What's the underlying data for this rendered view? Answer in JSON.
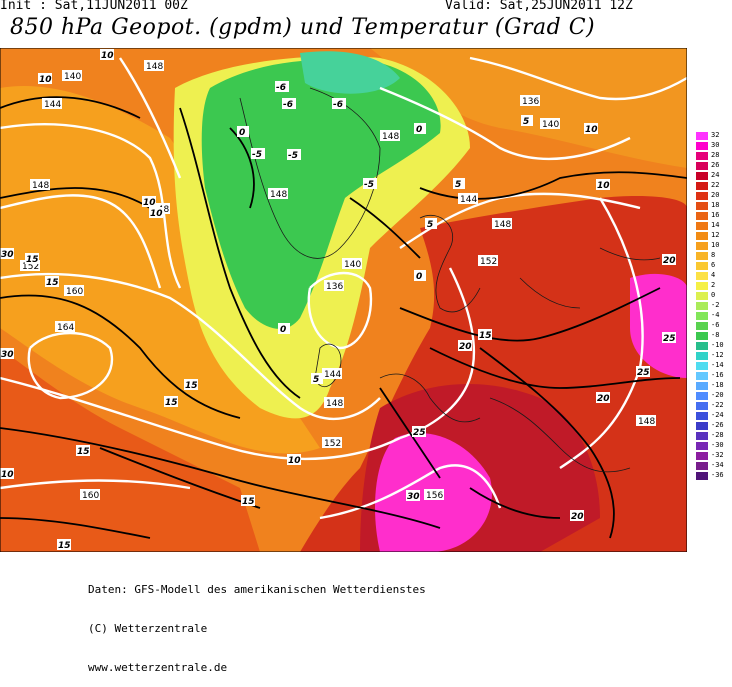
{
  "header": {
    "init": "Init : Sat,11JUN2011 00Z",
    "valid": "Valid: Sat,25JUN2011 12Z",
    "title": "850 hPa Geopot. (gpdm) und Temperatur (Grad C)"
  },
  "legend": {
    "values": [
      "32",
      "30",
      "28",
      "26",
      "24",
      "22",
      "20",
      "18",
      "16",
      "14",
      "12",
      "10",
      "8",
      "6",
      "4",
      "2",
      "0",
      "-2",
      "-4",
      "-6",
      "-8",
      "-10",
      "-12",
      "-14",
      "-16",
      "-18",
      "-20",
      "-22",
      "-24",
      "-26",
      "-28",
      "-30",
      "-32",
      "-34",
      "-36"
    ],
    "colors": [
      "#ff33ff",
      "#ff00cc",
      "#e6007a",
      "#d8005a",
      "#c80028",
      "#d41a14",
      "#de3214",
      "#e44e14",
      "#ea6414",
      "#ef7814",
      "#f28c14",
      "#f6a01e",
      "#f8b428",
      "#fac832",
      "#fce146",
      "#f5f046",
      "#dcf050",
      "#aaeb5a",
      "#82e65a",
      "#5ad250",
      "#3cc850",
      "#28be8c",
      "#32d2c8",
      "#50dcf0",
      "#64c8ff",
      "#5aaaff",
      "#508cff",
      "#466ef0",
      "#3c50dc",
      "#3c3cc8",
      "#5a32be",
      "#7828b4",
      "#8c1ea0",
      "#781e8c",
      "#501478"
    ]
  },
  "map": {
    "geopotential_labels": [
      "140",
      "148",
      "144",
      "148",
      "148",
      "148",
      "136",
      "140",
      "148",
      "144",
      "148",
      "152",
      "140",
      "136",
      "144",
      "160",
      "164",
      "152",
      "160",
      "148",
      "148",
      "152",
      "156"
    ],
    "temperature_labels": [
      "10",
      "10",
      "10",
      "-6",
      "-6",
      "-6",
      "-5",
      "-5",
      "0",
      "0",
      "0",
      "-5",
      "5",
      "5",
      "5",
      "10",
      "10",
      "10",
      "15",
      "15",
      "15",
      "15",
      "15",
      "15",
      "15",
      "15",
      "20",
      "20",
      "20",
      "20",
      "25",
      "25",
      "25",
      "30",
      "30",
      "30",
      "0",
      "5",
      "10",
      "10"
    ],
    "colors": {
      "ocean_warm": "#f08c1e",
      "land_hot": "#c81e1e",
      "green_cold": "#3cc850",
      "yellow": "#f0f050",
      "magenta": "#ff33cc"
    }
  },
  "footer": {
    "line1": "Daten: GFS-Modell des amerikanischen Wetterdienstes",
    "line2": "(C) Wetterzentrale",
    "line3": "www.wetterzentrale.de"
  }
}
